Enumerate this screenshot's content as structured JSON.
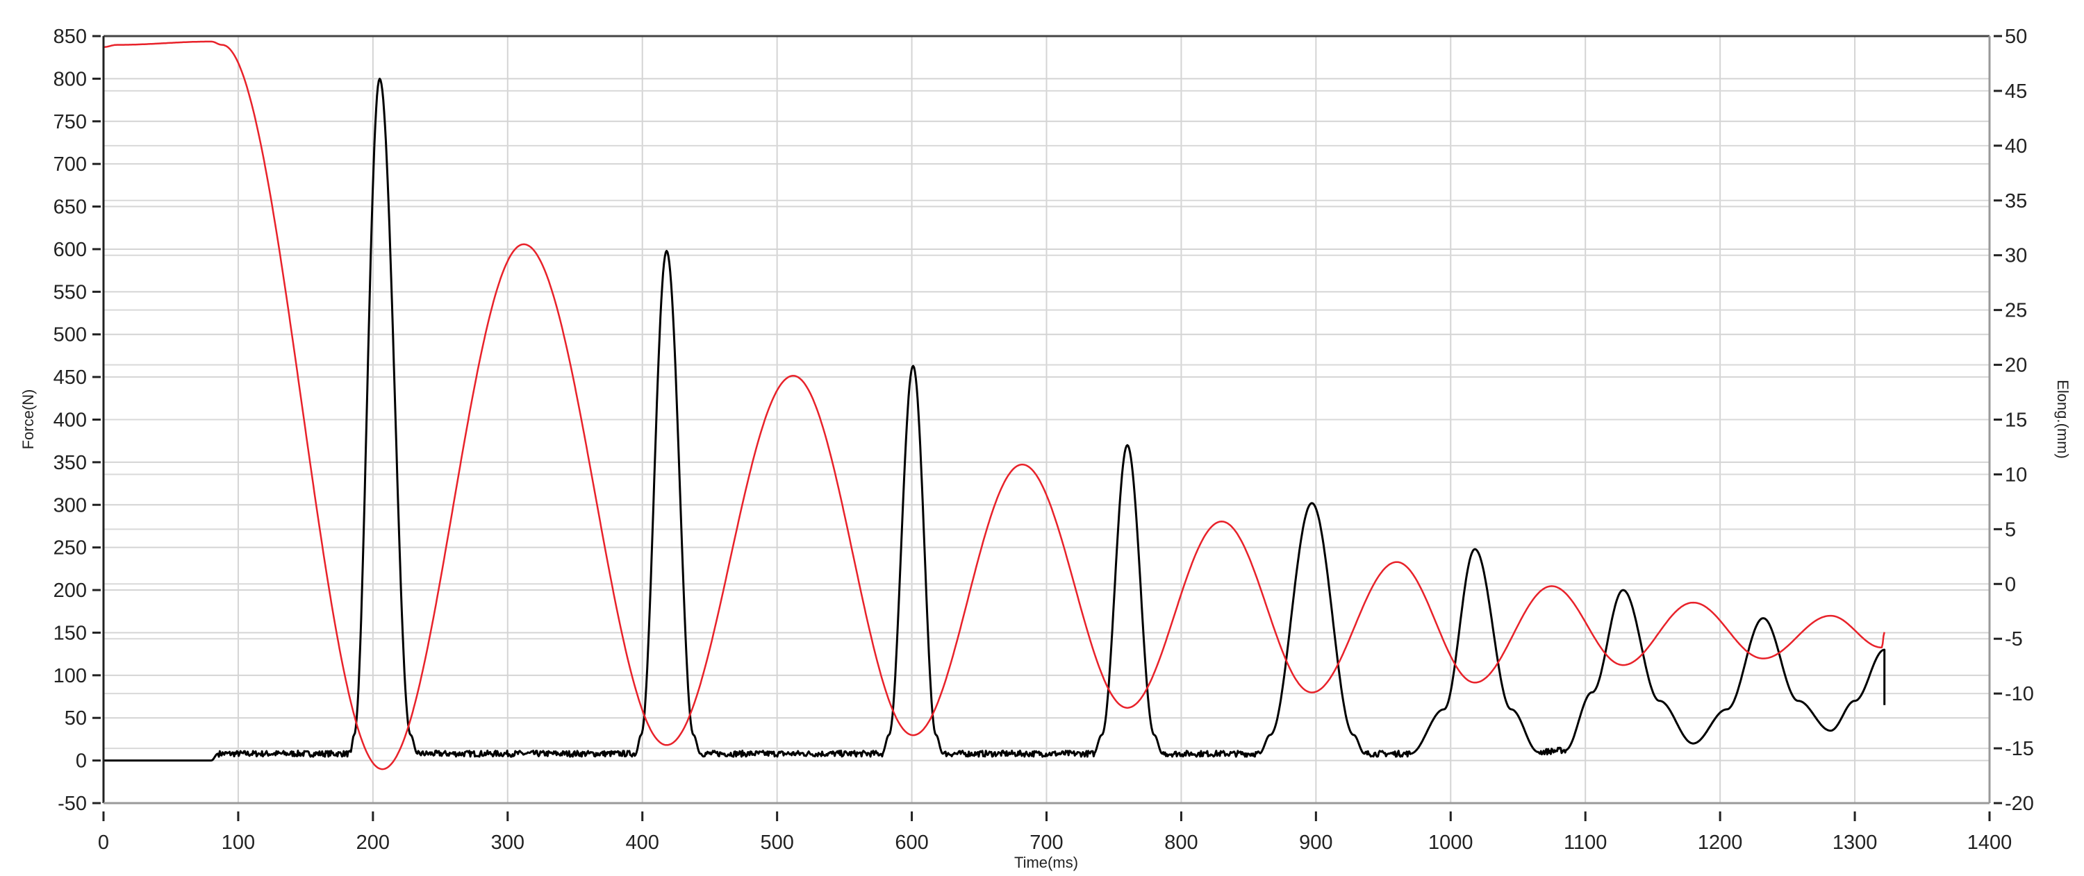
{
  "chart_data": {
    "type": "line",
    "xlabel": "Time(ms)",
    "ylabel": "Force(N)",
    "y2label": "Elong.(mm)",
    "xlim": [
      0,
      1400
    ],
    "ylim": [
      -50,
      850
    ],
    "y2lim": [
      -20,
      50
    ],
    "xticks": [
      0,
      100,
      200,
      300,
      400,
      500,
      600,
      700,
      800,
      900,
      1000,
      1100,
      1200,
      1300,
      1400
    ],
    "yticks": [
      -50,
      0,
      50,
      100,
      150,
      200,
      250,
      300,
      350,
      400,
      450,
      500,
      550,
      600,
      650,
      700,
      750,
      800,
      850
    ],
    "y2ticks": [
      -20,
      -15,
      -10,
      -5,
      0,
      5,
      10,
      15,
      20,
      25,
      30,
      35,
      40,
      45,
      50
    ],
    "grid": true,
    "series": [
      {
        "axis": "left",
        "color": "#000000",
        "points": [
          [
            0,
            0
          ],
          [
            80,
            0
          ],
          [
            85,
            8
          ],
          [
            183,
            8
          ],
          [
            186,
            30
          ],
          [
            205,
            800
          ],
          [
            228,
            30
          ],
          [
            233,
            8
          ],
          [
            395,
            8
          ],
          [
            399,
            30
          ],
          [
            418,
            598
          ],
          [
            438,
            30
          ],
          [
            443,
            8
          ],
          [
            578,
            8
          ],
          [
            583,
            30
          ],
          [
            601,
            463
          ],
          [
            618,
            30
          ],
          [
            623,
            8
          ],
          [
            735,
            8
          ],
          [
            741,
            30
          ],
          [
            760,
            370
          ],
          [
            780,
            30
          ],
          [
            786,
            8
          ],
          [
            858,
            8
          ],
          [
            866,
            30
          ],
          [
            897,
            302
          ],
          [
            928,
            30
          ],
          [
            936,
            8
          ],
          [
            970,
            8
          ],
          [
            995,
            60
          ],
          [
            1018,
            248
          ],
          [
            1045,
            60
          ],
          [
            1065,
            10
          ],
          [
            1085,
            12
          ],
          [
            1105,
            80
          ],
          [
            1128,
            200
          ],
          [
            1155,
            70
          ],
          [
            1180,
            20
          ],
          [
            1205,
            60
          ],
          [
            1232,
            167
          ],
          [
            1258,
            70
          ],
          [
            1282,
            35
          ],
          [
            1300,
            70
          ],
          [
            1322,
            130
          ],
          [
            1322,
            65
          ]
        ]
      },
      {
        "axis": "right",
        "color": "#e8222a",
        "points": [
          [
            0,
            49.0
          ],
          [
            10,
            49.2
          ],
          [
            80,
            49.5
          ],
          [
            88,
            49.2
          ],
          [
            207,
            -16.9
          ],
          [
            312,
            31.0
          ],
          [
            418,
            -14.7
          ],
          [
            512,
            19.0
          ],
          [
            601,
            -13.8
          ],
          [
            682,
            10.9
          ],
          [
            760,
            -11.3
          ],
          [
            830,
            5.7
          ],
          [
            897,
            -9.9
          ],
          [
            960,
            2.0
          ],
          [
            1018,
            -9.0
          ],
          [
            1075,
            -0.2
          ],
          [
            1128,
            -7.4
          ],
          [
            1180,
            -1.7
          ],
          [
            1232,
            -6.8
          ],
          [
            1282,
            -2.9
          ],
          [
            1320,
            -5.8
          ],
          [
            1322,
            -4.4
          ]
        ]
      }
    ]
  }
}
